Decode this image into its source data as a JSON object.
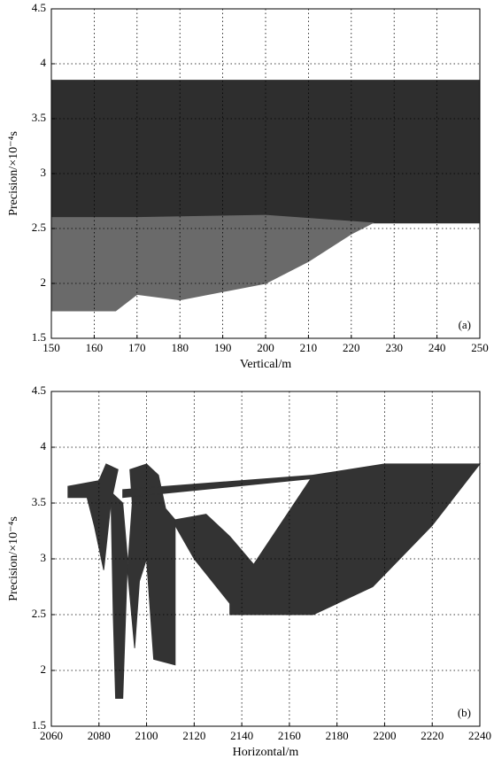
{
  "chart_data": [
    {
      "type": "area",
      "x_label": "Vertical/m",
      "y_label": "Precision/×10⁻⁴s",
      "annotation": "(a)",
      "xlim": [
        150,
        250
      ],
      "xticks": [
        150,
        160,
        170,
        180,
        190,
        200,
        210,
        220,
        230,
        240,
        250
      ],
      "ylim": [
        1.5,
        4.5
      ],
      "yticks": [
        1.5,
        2,
        2.5,
        3,
        3.5,
        4,
        4.5
      ],
      "grid": true,
      "series": [
        {
          "color": "#2e2e2e",
          "x": [
            150,
            250,
            250,
            225,
            200,
            170,
            150
          ],
          "y": [
            3.85,
            3.85,
            2.55,
            2.55,
            2.62,
            2.6,
            2.6
          ]
        },
        {
          "color": "#6a6a6a",
          "x": [
            150,
            170,
            200,
            225,
            220,
            210,
            200,
            180,
            170,
            165,
            150
          ],
          "y": [
            2.6,
            2.6,
            2.62,
            2.55,
            2.45,
            2.2,
            2.0,
            1.85,
            1.9,
            1.75,
            1.75
          ]
        }
      ]
    },
    {
      "type": "area",
      "x_label": "Horizontal/m",
      "y_label": "Precision/×10⁻⁴s",
      "annotation": "(b)",
      "xlim": [
        2060,
        2240
      ],
      "xticks": [
        2060,
        2080,
        2100,
        2120,
        2140,
        2160,
        2180,
        2200,
        2220,
        2240
      ],
      "ylim": [
        1.5,
        4.5
      ],
      "yticks": [
        1.5,
        2,
        2.5,
        3,
        3.5,
        4,
        4.5
      ],
      "grid": true,
      "series": [
        {
          "color": "#333333",
          "x": [
            2067,
            2080,
            2083,
            2088,
            2085,
            2082,
            2078,
            2075,
            2067
          ],
          "y": [
            3.65,
            3.7,
            3.85,
            3.8,
            3.5,
            2.9,
            3.3,
            3.55,
            3.55
          ]
        },
        {
          "color": "#333333",
          "x": [
            2085,
            2090,
            2092,
            2090,
            2087,
            2086
          ],
          "y": [
            3.6,
            3.5,
            3.0,
            1.75,
            1.75,
            2.5
          ]
        },
        {
          "color": "#333333",
          "x": [
            2093,
            2100,
            2105,
            2108,
            2112,
            2112,
            2103,
            2100,
            2097,
            2095,
            2092,
            2094
          ],
          "y": [
            3.8,
            3.85,
            3.75,
            3.45,
            3.35,
            2.05,
            2.1,
            3.0,
            2.8,
            2.2,
            2.9,
            3.5
          ]
        },
        {
          "color": "#333333",
          "x": [
            2090,
            2170,
            2170,
            2090
          ],
          "y": [
            3.62,
            3.75,
            3.72,
            3.55
          ]
        },
        {
          "color": "#333333",
          "x": [
            2112,
            2125,
            2135,
            2145,
            2170,
            2200,
            2240,
            2220,
            2195,
            2170,
            2135,
            2135,
            2120,
            2112
          ],
          "y": [
            3.35,
            3.4,
            3.2,
            2.95,
            3.75,
            3.85,
            3.85,
            3.3,
            2.75,
            2.5,
            2.5,
            2.6,
            3.0,
            3.3
          ]
        }
      ]
    }
  ]
}
